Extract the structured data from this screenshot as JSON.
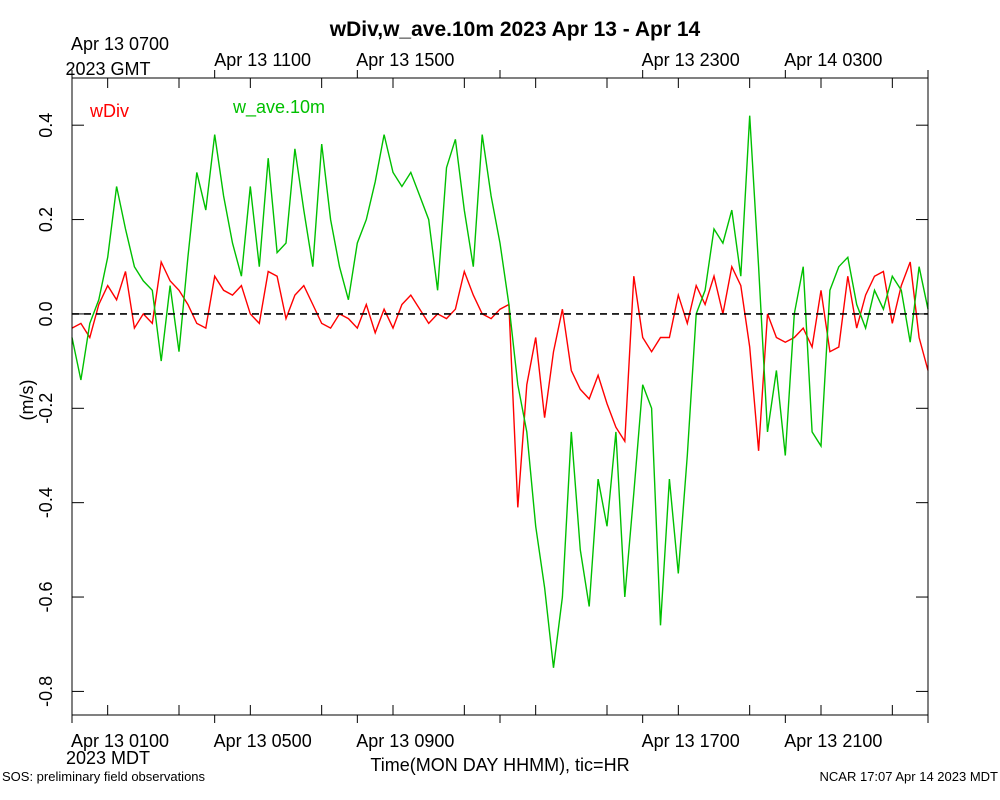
{
  "chart_data": {
    "type": "line",
    "title": "wDiv,w_ave.10m 2023 Apr 13 - Apr 14",
    "ylabel": "(m/s)",
    "xlabel": "Time(MON DAY HHMM), tic=HR",
    "xlim_hours": [
      0,
      24
    ],
    "ylim": [
      -0.85,
      0.5
    ],
    "y_ticks": [
      {
        "value": 0.4,
        "label": "0.4"
      },
      {
        "value": 0.2,
        "label": "0.2"
      },
      {
        "value": 0.0,
        "label": "0.0"
      },
      {
        "value": -0.2,
        "label": "-0.2"
      },
      {
        "value": -0.4,
        "label": "-0.4"
      },
      {
        "value": -0.6,
        "label": "-0.6"
      },
      {
        "value": -0.8,
        "label": "-0.8"
      }
    ],
    "zero_line": 0.0,
    "x_ticks_bottom_hours": [
      1,
      3,
      5,
      7,
      9,
      11,
      13,
      15,
      17,
      19,
      21,
      23
    ],
    "x_labels_bottom": [
      {
        "hour": 0,
        "label": "Apr 13 0100"
      },
      {
        "hour": 4,
        "label": "Apr 13 0500"
      },
      {
        "hour": 8,
        "label": "Apr 13 0900"
      },
      {
        "hour": 16,
        "label": "Apr 13 1700"
      },
      {
        "hour": 20,
        "label": "Apr 13 2100"
      }
    ],
    "x_labels_top": [
      {
        "hour": 0,
        "label": "Apr 13 0700"
      },
      {
        "hour": 4,
        "label": "Apr 13 1100"
      },
      {
        "hour": 8,
        "label": "Apr 13 1500"
      },
      {
        "hour": 16,
        "label": "Apr 13 2300"
      },
      {
        "hour": 20,
        "label": "Apr 14 0300"
      }
    ],
    "timezone_bottom": "2023 MDT",
    "timezone_top": "2023 GMT",
    "series": [
      {
        "name": "wDiv",
        "color": "#ff0000",
        "x_hours": [
          0,
          0.25,
          0.5,
          0.75,
          1,
          1.25,
          1.5,
          1.75,
          2,
          2.25,
          2.5,
          2.75,
          3,
          3.25,
          3.5,
          3.75,
          4,
          4.25,
          4.5,
          4.75,
          5,
          5.25,
          5.5,
          5.75,
          6,
          6.25,
          6.5,
          6.75,
          7,
          7.25,
          7.5,
          7.75,
          8,
          8.25,
          8.5,
          8.75,
          9,
          9.25,
          9.5,
          9.75,
          10,
          10.25,
          10.5,
          10.75,
          11,
          11.25,
          11.5,
          11.75,
          12,
          12.25,
          12.5,
          12.75,
          13,
          13.25,
          13.5,
          13.75,
          14,
          14.25,
          14.5,
          14.75,
          15,
          15.25,
          15.5,
          15.75,
          16,
          16.25,
          16.5,
          16.75,
          17,
          17.25,
          17.5,
          17.75,
          18,
          18.25,
          18.5,
          18.75,
          19,
          19.25,
          19.5,
          19.75,
          20,
          20.25,
          20.5,
          20.75,
          21,
          21.25,
          21.5,
          21.75,
          22,
          22.25,
          22.5,
          22.75,
          23,
          23.25,
          23.5,
          23.75,
          24
        ],
        "values": [
          -0.03,
          -0.02,
          -0.05,
          0.02,
          0.06,
          0.03,
          0.09,
          -0.03,
          0.0,
          -0.02,
          0.11,
          0.07,
          0.05,
          0.02,
          -0.02,
          -0.03,
          0.08,
          0.05,
          0.04,
          0.06,
          0.0,
          -0.02,
          0.09,
          0.08,
          -0.01,
          0.04,
          0.06,
          0.02,
          -0.02,
          -0.03,
          0.0,
          -0.01,
          -0.03,
          0.02,
          -0.04,
          0.01,
          -0.03,
          0.02,
          0.04,
          0.01,
          -0.02,
          0.0,
          -0.01,
          0.01,
          0.09,
          0.04,
          0.0,
          -0.01,
          0.01,
          0.02,
          -0.41,
          -0.15,
          -0.05,
          -0.22,
          -0.08,
          0.01,
          -0.12,
          -0.16,
          -0.18,
          -0.13,
          -0.19,
          -0.24,
          -0.27,
          0.08,
          -0.05,
          -0.08,
          -0.05,
          -0.05,
          0.04,
          -0.02,
          0.06,
          0.02,
          0.08,
          0.0,
          0.1,
          0.06,
          -0.07,
          -0.29,
          0.0,
          -0.05,
          -0.06,
          -0.05,
          -0.03,
          -0.07,
          0.05,
          -0.08,
          -0.07,
          0.08,
          -0.03,
          0.04,
          0.08,
          0.09,
          -0.02,
          0.06,
          0.11,
          -0.05,
          -0.12
        ]
      },
      {
        "name": "w_ave.10m",
        "color": "#00c000",
        "x_hours": [
          0,
          0.25,
          0.5,
          0.75,
          1,
          1.25,
          1.5,
          1.75,
          2,
          2.25,
          2.5,
          2.75,
          3,
          3.25,
          3.5,
          3.75,
          4,
          4.25,
          4.5,
          4.75,
          5,
          5.25,
          5.5,
          5.75,
          6,
          6.25,
          6.5,
          6.75,
          7,
          7.25,
          7.5,
          7.75,
          8,
          8.25,
          8.5,
          8.75,
          9,
          9.25,
          9.5,
          9.75,
          10,
          10.25,
          10.5,
          10.75,
          11,
          11.25,
          11.5,
          11.75,
          12,
          12.25,
          12.5,
          12.75,
          13,
          13.25,
          13.5,
          13.75,
          14,
          14.25,
          14.5,
          14.75,
          15,
          15.25,
          15.5,
          15.75,
          16,
          16.25,
          16.5,
          16.75,
          17,
          17.25,
          17.5,
          17.75,
          18,
          18.25,
          18.5,
          18.75,
          19,
          19.25,
          19.5,
          19.75,
          20,
          20.25,
          20.5,
          20.75,
          21,
          21.25,
          21.5,
          21.75,
          22,
          22.25,
          22.5,
          22.75,
          23,
          23.25,
          23.5,
          23.75,
          24
        ],
        "values": [
          -0.05,
          -0.14,
          -0.02,
          0.03,
          0.12,
          0.27,
          0.18,
          0.1,
          0.07,
          0.05,
          -0.1,
          0.06,
          -0.08,
          0.12,
          0.3,
          0.22,
          0.38,
          0.25,
          0.15,
          0.08,
          0.27,
          0.1,
          0.33,
          0.13,
          0.15,
          0.35,
          0.22,
          0.1,
          0.36,
          0.2,
          0.1,
          0.03,
          0.15,
          0.2,
          0.28,
          0.38,
          0.3,
          0.27,
          0.3,
          0.25,
          0.2,
          0.05,
          0.31,
          0.37,
          0.22,
          0.1,
          0.38,
          0.25,
          0.15,
          0.02,
          -0.15,
          -0.25,
          -0.45,
          -0.58,
          -0.75,
          -0.6,
          -0.25,
          -0.5,
          -0.62,
          -0.35,
          -0.45,
          -0.25,
          -0.6,
          -0.38,
          -0.15,
          -0.2,
          -0.66,
          -0.35,
          -0.55,
          -0.3,
          0.0,
          0.05,
          0.18,
          0.15,
          0.22,
          0.08,
          0.42,
          0.1,
          -0.25,
          -0.12,
          -0.3,
          0.0,
          0.1,
          -0.25,
          -0.28,
          0.05,
          0.1,
          0.12,
          0.02,
          -0.03,
          0.05,
          0.01,
          0.08,
          0.05,
          -0.06,
          0.1,
          0.01
        ]
      }
    ],
    "legend": "top-left"
  },
  "footer": {
    "left": "SOS: preliminary field observations",
    "right": "NCAR 17:07 Apr 14 2023 MDT"
  }
}
